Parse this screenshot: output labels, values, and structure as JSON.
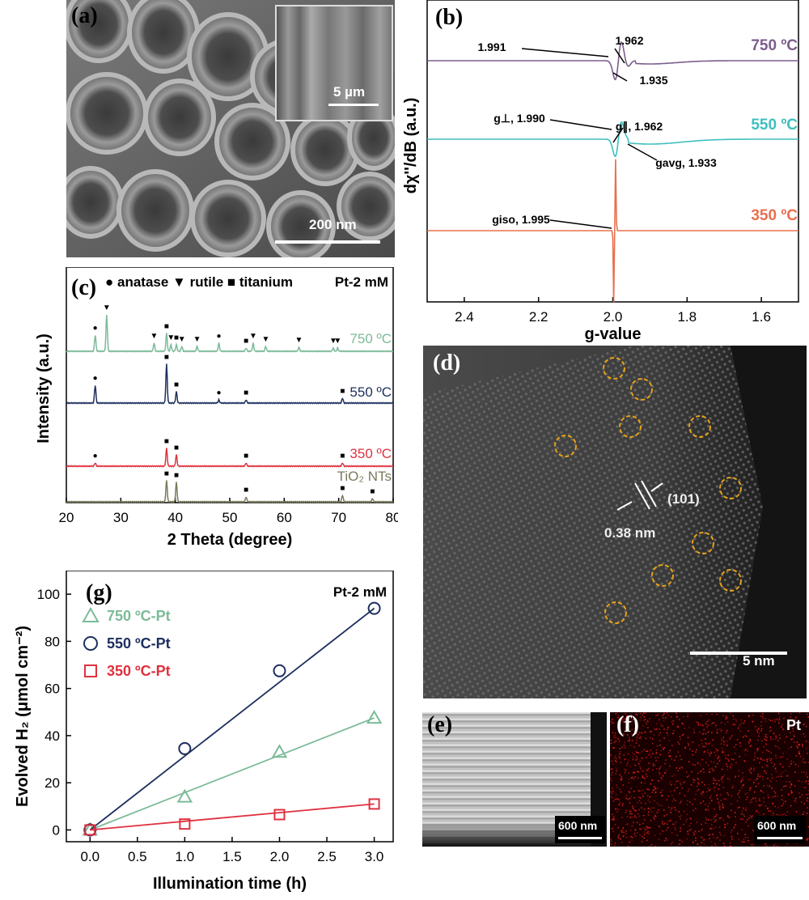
{
  "panel_a": {
    "label": "(a)",
    "inset_scale": "5 µm",
    "scale": "200 nm"
  },
  "panel_b": {
    "label": "(b)"
  },
  "panel_c": {
    "label": "(c)"
  },
  "panel_d": {
    "label": "(d)",
    "plane": "(101)",
    "spacing": "0.38 nm",
    "scale": "5 nm"
  },
  "panel_e": {
    "label": "(e)",
    "scale": "600 nm"
  },
  "panel_f": {
    "label": "(f)",
    "element": "Pt",
    "scale": "600 nm"
  },
  "panel_g": {
    "label": "(g)"
  },
  "colors": {
    "c750": "#7b5e8c",
    "c550": "#3fbfbf",
    "c350": "#e8704f",
    "g750": "#7cba98",
    "g550": "#1d2f5e",
    "g350": "#e0313f",
    "tio2": "#7a7a5c",
    "gold": "#e8a317"
  },
  "chart_data": [
    {
      "type": "line",
      "panel": "b",
      "xlabel": "g-value",
      "ylabel": "dχ''/dB (a.u.)",
      "xlim": [
        2.5,
        1.5
      ],
      "x_ticks": [
        2.4,
        2.2,
        2.0,
        1.8,
        1.6
      ],
      "x_tick_labels": [
        "2.4",
        "2.2",
        "2.0",
        "1.8",
        "1.6"
      ],
      "series": [
        {
          "name": "750 ºC",
          "label": "750 ºC",
          "annotations": [
            "1.991",
            "1.962",
            "1.935"
          ]
        },
        {
          "name": "550 ºC",
          "label": "550 ºC",
          "annotations": [
            "g⊥, 1.990",
            "g∥, 1.962",
            "gavg, 1.933"
          ]
        },
        {
          "name": "350 ºC",
          "label": "350 ºC",
          "annotations": [
            "giso, 1.995"
          ]
        }
      ]
    },
    {
      "type": "line",
      "panel": "c",
      "xlabel": "2 Theta (degree)",
      "ylabel": "Intensity (a.u.)",
      "xlim": [
        20,
        80
      ],
      "x_ticks": [
        20,
        30,
        40,
        50,
        60,
        70,
        80
      ],
      "legend": "● anatase ▼ rutile ■ titanium",
      "annotation": "Pt-2 mM",
      "series": [
        {
          "name": "750 ºC",
          "label": "750 ºC",
          "peaks_anatase": [
            25.3,
            48.0
          ],
          "peaks_rutile": [
            27.4,
            36.1,
            39.2,
            41.2,
            44.0,
            54.3,
            56.6,
            62.7,
            69.0,
            69.8
          ],
          "peaks_titanium": [
            38.4,
            40.2,
            53.0
          ]
        },
        {
          "name": "550 ºC",
          "label": "550 ºC",
          "peaks_anatase": [
            25.3,
            48.0
          ],
          "peaks_titanium": [
            38.4,
            40.2,
            53.0,
            70.7
          ]
        },
        {
          "name": "350 ºC",
          "label": "350 ºC",
          "peaks_anatase": [
            25.3
          ],
          "peaks_titanium": [
            38.4,
            40.2,
            53.0,
            70.7
          ]
        },
        {
          "name": "TiO₂ NTs",
          "label": "TiO₂ NTs",
          "peaks_titanium": [
            38.4,
            40.2,
            53.0,
            70.7,
            76.2
          ]
        }
      ]
    },
    {
      "type": "scatter",
      "panel": "g",
      "xlabel": "Illumination time (h)",
      "ylabel": "Evolved H₂ (μmol cm⁻²)",
      "xlim": [
        -0.25,
        3.2
      ],
      "ylim": [
        -5,
        110
      ],
      "x_ticks": [
        "0.0",
        "0.5",
        "1.0",
        "1.5",
        "2.0",
        "2.5",
        "3.0"
      ],
      "y_ticks": [
        "0",
        "20",
        "40",
        "60",
        "80",
        "100"
      ],
      "annotation": "Pt-2 mM",
      "x": [
        0,
        1,
        2,
        3
      ],
      "series": [
        {
          "name": "750 ºC-Pt",
          "marker": "triangle",
          "values": [
            0,
            14,
            33,
            47.5
          ]
        },
        {
          "name": "550 ºC-Pt",
          "marker": "circle",
          "values": [
            0,
            34.5,
            67.5,
            94
          ]
        },
        {
          "name": "350 ºC-Pt",
          "marker": "square",
          "values": [
            0,
            2.5,
            6.5,
            11
          ]
        }
      ]
    }
  ]
}
